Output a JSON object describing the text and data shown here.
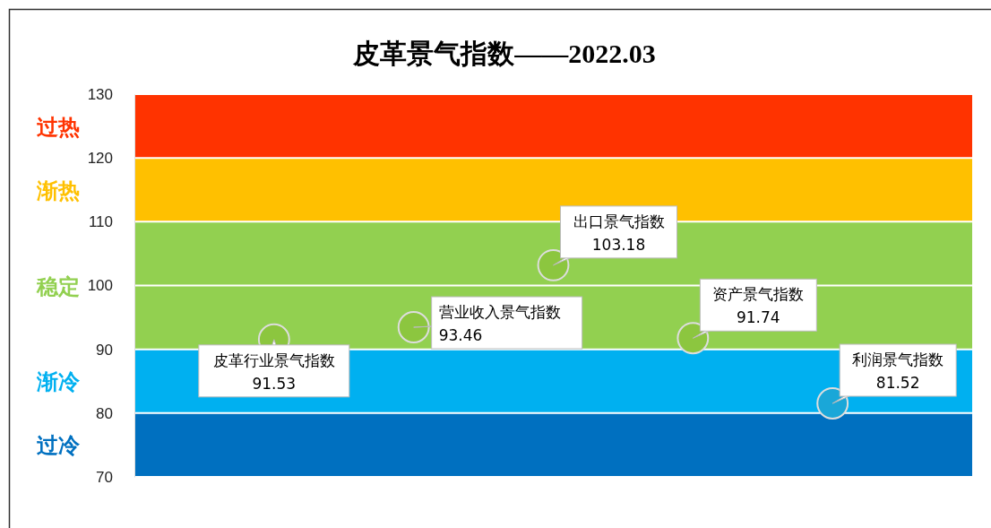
{
  "chart_data": {
    "type": "scatter",
    "title": "皮革景气指数——2022.03",
    "categories": [
      null,
      null,
      null,
      null,
      null
    ],
    "series": [
      {
        "name": "皮革行业景气指数",
        "color": "#8cc63f",
        "values": [
          91.53,
          null,
          null,
          null,
          null
        ]
      },
      {
        "name": "营业收入景气指数",
        "color": "#8cc63f",
        "values": [
          null,
          93.46,
          null,
          null,
          null
        ]
      },
      {
        "name": "出口景气指数",
        "color": "#8cc63f",
        "values": [
          null,
          null,
          103.18,
          null,
          null
        ]
      },
      {
        "name": "资产景气指数",
        "color": "#8cc63f",
        "values": [
          null,
          null,
          null,
          91.74,
          null
        ]
      },
      {
        "name": "利润景气指数",
        "color": "#1aa7d8",
        "values": [
          null,
          null,
          null,
          null,
          81.52
        ]
      }
    ],
    "bands": [
      {
        "axis": "y",
        "from": 70,
        "to": 80,
        "label": "过冷",
        "color": "#0070c0"
      },
      {
        "axis": "y",
        "from": 80,
        "to": 90,
        "label": "渐冷",
        "color": "#00b0f0"
      },
      {
        "axis": "y",
        "from": 90,
        "to": 110,
        "label": "稳定",
        "color": "#92d050"
      },
      {
        "axis": "y",
        "from": 110,
        "to": 120,
        "label": "渐热",
        "color": "#ffc000"
      },
      {
        "axis": "y",
        "from": 120,
        "to": 130,
        "label": "过热",
        "color": "#ff3300"
      }
    ],
    "ylim": [
      70,
      130
    ],
    "yticks": [
      70,
      80,
      90,
      100,
      110,
      120,
      130
    ],
    "grid": "y",
    "marker": "circle",
    "data_labels": true
  }
}
